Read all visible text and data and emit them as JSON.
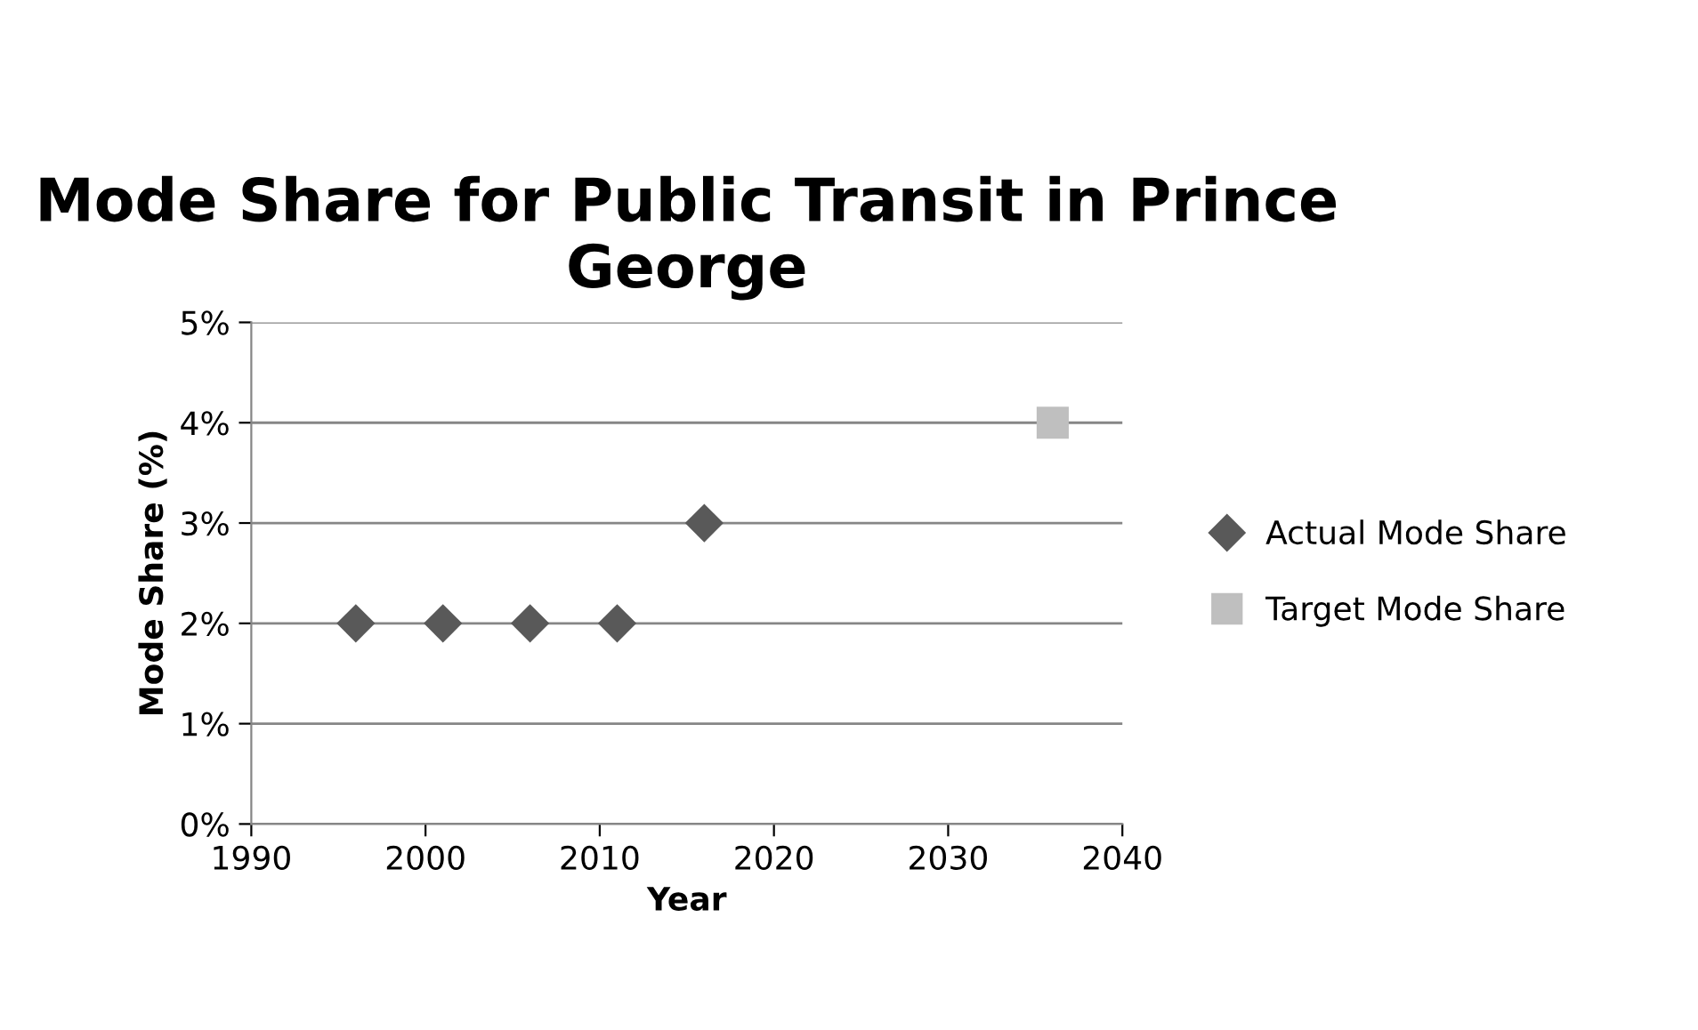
{
  "chart_data": {
    "type": "scatter",
    "title": "Mode Share for Public Transit in Prince George",
    "xlabel": "Year",
    "ylabel": "Mode Share (%)",
    "series": [
      {
        "name": "Actual Mode Share",
        "color": "#595959",
        "marker": "diamond",
        "x": [
          1996,
          2001,
          2006,
          2011,
          2016
        ],
        "values": [
          2,
          2,
          2,
          2,
          3
        ]
      },
      {
        "name": "Target Mode Share",
        "color": "#bfbfbf",
        "marker": "square",
        "x": [
          2036
        ],
        "values": [
          4
        ]
      }
    ],
    "xlim": [
      1990,
      2040
    ],
    "xticks": [
      1990,
      2000,
      2010,
      2020,
      2030,
      2040
    ],
    "ylim": [
      0,
      5
    ],
    "yticks": [
      {
        "value": 0,
        "label": "0%"
      },
      {
        "value": 1,
        "label": "1%"
      },
      {
        "value": 2,
        "label": "2%"
      },
      {
        "value": 3,
        "label": "3%"
      },
      {
        "value": 4,
        "label": "4%"
      },
      {
        "value": 5,
        "label": "5%"
      }
    ],
    "grid": "y",
    "legend": "right"
  }
}
